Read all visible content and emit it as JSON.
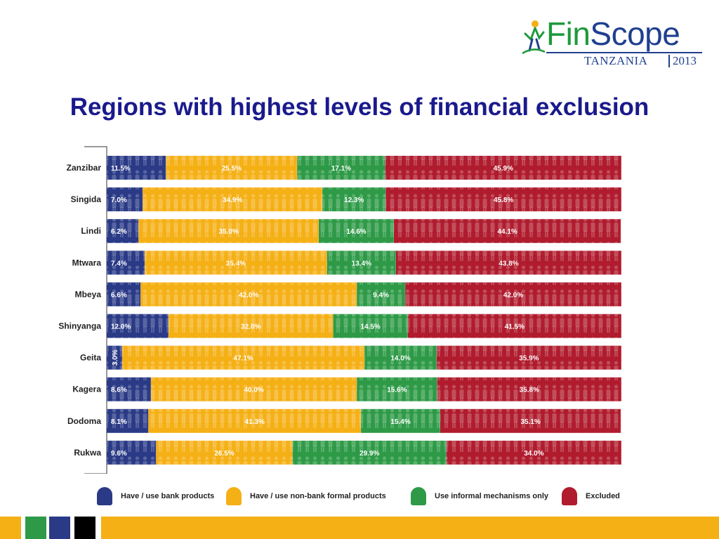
{
  "logo": {
    "brand_part1": "Fin",
    "brand_part2": "Scope",
    "country": "TANZANIA",
    "year": "2013"
  },
  "title": "Regions with highest levels of financial exclusion",
  "colors": {
    "bank": "#2a3a86",
    "nonbank": "#f5b016",
    "informal": "#2e9a47",
    "excluded": "#b01c2e",
    "title": "#1a1a8c"
  },
  "chart_data": {
    "type": "bar",
    "orientation": "horizontal",
    "stacked": true,
    "categories": [
      "Zanzibar",
      "Singida",
      "Lindi",
      "Mtwara",
      "Mbeya",
      "Shinyanga",
      "Geita",
      "Kagera",
      "Dodoma",
      "Rukwa"
    ],
    "series": [
      {
        "name": "Have / use bank products",
        "color": "#2a3a86",
        "values": [
          11.5,
          7.0,
          6.2,
          7.4,
          6.6,
          12.0,
          3.0,
          8.6,
          8.1,
          9.6
        ]
      },
      {
        "name": "Have / use non-bank formal products",
        "color": "#f5b016",
        "values": [
          25.5,
          34.9,
          35.0,
          35.4,
          42.0,
          32.0,
          47.1,
          40.0,
          41.3,
          26.5
        ]
      },
      {
        "name": "Use informal mechanisms only",
        "color": "#2e9a47",
        "values": [
          17.1,
          12.3,
          14.6,
          13.4,
          9.4,
          14.5,
          14.0,
          15.6,
          15.4,
          29.9
        ]
      },
      {
        "name": "Excluded",
        "color": "#b01c2e",
        "values": [
          45.9,
          45.8,
          44.1,
          43.8,
          42.0,
          41.5,
          35.9,
          35.8,
          35.1,
          34.0
        ]
      }
    ],
    "labels": [
      [
        "11.5%",
        "25.5%",
        "17.1%",
        "45.9%"
      ],
      [
        "7.0%",
        "34.9%",
        "12.3%",
        "45.8%"
      ],
      [
        "6.2%",
        "35.0%",
        "14.6%",
        "44.1%"
      ],
      [
        "7.4%",
        "35.4%",
        "13.4%",
        "43.8%"
      ],
      [
        "6.6%",
        "42.0%",
        "9.4%",
        "42.0%"
      ],
      [
        "12.0%",
        "32.0%",
        "14.5%",
        "41.5%"
      ],
      [
        "3.0%",
        "47.1%",
        "14.0%",
        "35.9%"
      ],
      [
        "8.6%",
        "40.0%",
        "15.6%",
        "35.8%"
      ],
      [
        "8.1%",
        "41.3%",
        "15.4%",
        "35.1%"
      ],
      [
        "9.6%",
        "26.5%",
        "29.9%",
        "34.0%"
      ]
    ],
    "xlim": [
      0,
      100
    ],
    "legend_position": "bottom",
    "grid": false
  },
  "legend": [
    {
      "label": "Have / use bank products",
      "color": "#2a3a86"
    },
    {
      "label": "Have / use non-bank formal products",
      "color": "#f5b016"
    },
    {
      "label": "Use informal mechanisms only",
      "color": "#2e9a47"
    },
    {
      "label": "Excluded",
      "color": "#b01c2e"
    }
  ],
  "footer": {
    "colors": [
      "#f5b016",
      "#ffffff",
      "#2e9a47",
      "#2a3a86",
      "#000000",
      "#ffffff",
      "#f5b016"
    ]
  }
}
